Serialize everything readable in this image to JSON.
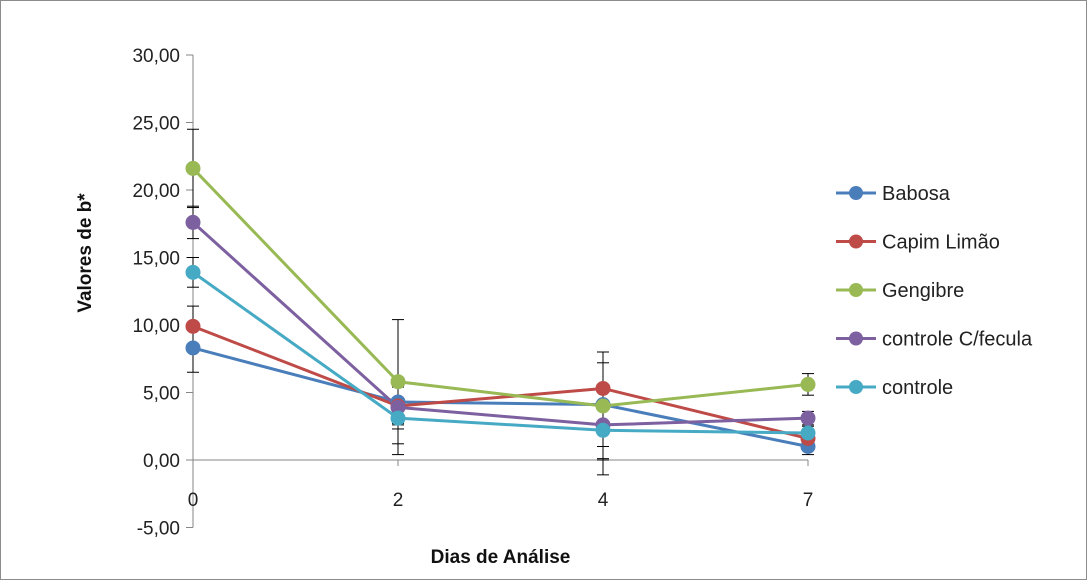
{
  "chart_data": {
    "type": "line",
    "title": "",
    "xlabel": "Dias de Análise",
    "ylabel": "Valores de b*",
    "categories": [
      "0",
      "2",
      "4",
      "7"
    ],
    "ylim": [
      -5,
      30
    ],
    "yticks": [
      "-5,00",
      "0,00",
      "5,00",
      "10,00",
      "15,00",
      "20,00",
      "25,00",
      "30,00"
    ],
    "yticks_values": [
      -5,
      0,
      5,
      10,
      15,
      20,
      25,
      30
    ],
    "grid": false,
    "legend_position": "right",
    "series": [
      {
        "name": "Babosa",
        "color": "#4A7EBB",
        "values": [
          8.3,
          4.3,
          4.1,
          1.0
        ],
        "errors": [
          1.8,
          1.6,
          3.1,
          0.6
        ]
      },
      {
        "name": "Capim Limão",
        "color": "#BE4B48",
        "values": [
          9.9,
          4.0,
          5.3,
          1.6
        ],
        "errors": [
          1.5,
          1.4,
          2.7,
          0.5
        ]
      },
      {
        "name": "Gengibre",
        "color": "#98B954",
        "values": [
          21.6,
          5.8,
          4.0,
          5.6
        ],
        "errors": [
          2.9,
          4.6,
          4.0,
          0.8
        ]
      },
      {
        "name": "controle C/fecula",
        "color": "#7D60A0",
        "values": [
          17.6,
          3.9,
          2.6,
          3.1
        ],
        "errors": [
          1.2,
          1.6,
          2.5,
          0.5
        ]
      },
      {
        "name": "controle",
        "color": "#46AAC5",
        "values": [
          13.9,
          3.1,
          2.2,
          2.0
        ],
        "errors": [
          1.1,
          2.7,
          3.3,
          0.5
        ]
      }
    ]
  }
}
